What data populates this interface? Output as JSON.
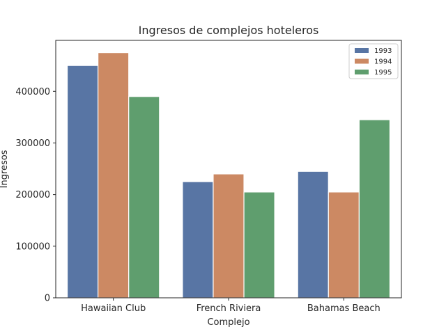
{
  "chart_data": {
    "type": "bar",
    "title": "Ingresos de complejos hoteleros",
    "xlabel": "Complejo",
    "ylabel": "Ingresos",
    "categories": [
      "Hawaiian Club",
      "French Riviera",
      "Bahamas Beach"
    ],
    "series": [
      {
        "name": "1993",
        "values": [
          450000,
          225000,
          245000
        ],
        "color": "#5875a4"
      },
      {
        "name": "1994",
        "values": [
          475000,
          240000,
          205000
        ],
        "color": "#cc8963"
      },
      {
        "name": "1995",
        "values": [
          390000,
          205000,
          345000
        ],
        "color": "#5f9e6e"
      }
    ],
    "ylim": [
      0,
      498750
    ],
    "yticks": [
      0,
      100000,
      200000,
      300000,
      400000
    ],
    "ytick_labels": [
      "0",
      "100000",
      "200000",
      "300000",
      "400000"
    ],
    "grid": false,
    "legend_position": "top-right"
  }
}
